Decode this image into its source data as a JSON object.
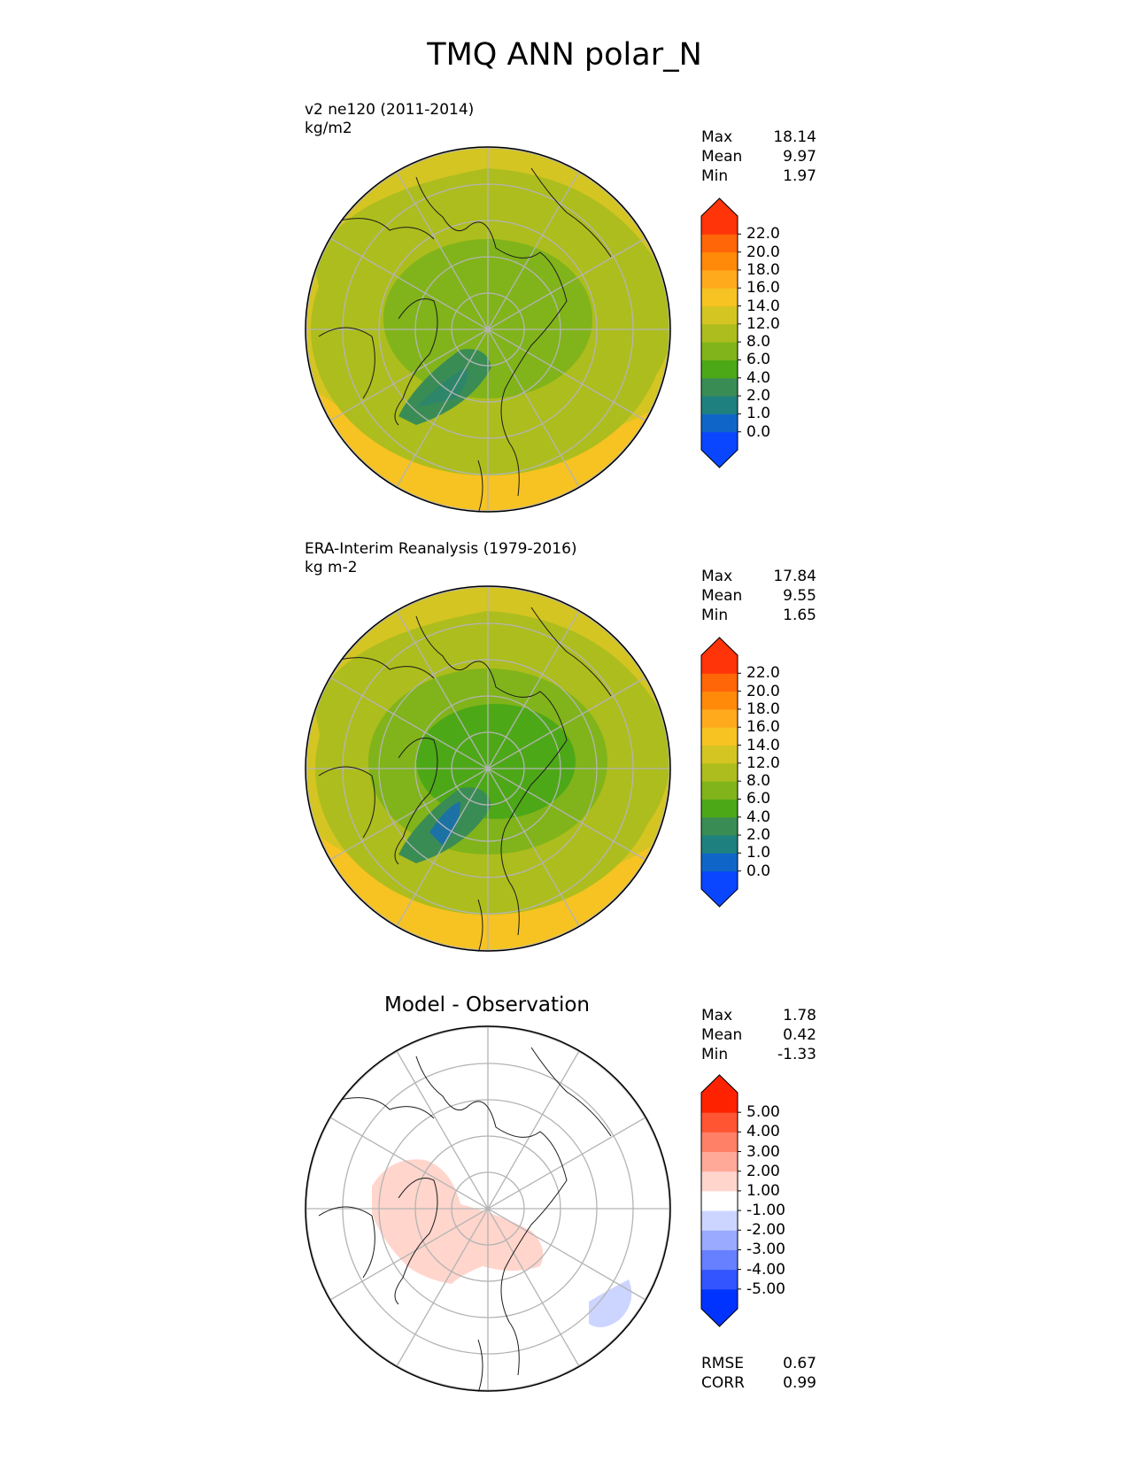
{
  "title": "TMQ ANN polar_N",
  "colors": {
    "fill_levels": [
      "#0a46ff",
      "#1066c8",
      "#1f8080",
      "#3a8c55",
      "#4da817",
      "#80b41a",
      "#adbd1d",
      "#d4c523",
      "#f6c322",
      "#ffaa1d",
      "#ff8a0a",
      "#ff6608",
      "#ff3408"
    ],
    "diff_levels": [
      "#0033ff",
      "#3355ff",
      "#6680ff",
      "#99aaff",
      "#ccd5ff",
      "#ffffff",
      "#ffd5cc",
      "#ffaa99",
      "#ff8066",
      "#ff5533",
      "#ff2200"
    ]
  },
  "chart_data": [
    {
      "type": "heatmap",
      "projection": "north-polar-stereographic",
      "title": "v2 ne120 (2011-2014)",
      "units": "kg/m2",
      "stats": {
        "max_label": "Max",
        "max": "18.14",
        "mean_label": "Mean",
        "mean": "9.97",
        "min_label": "Min",
        "min": "1.97"
      },
      "colorbar_ticks": [
        "0.0",
        "1.0",
        "2.0",
        "4.0",
        "6.0",
        "8.0",
        "12.0",
        "14.0",
        "16.0",
        "18.0",
        "20.0",
        "22.0"
      ]
    },
    {
      "type": "heatmap",
      "projection": "north-polar-stereographic",
      "title": "ERA-Interim Reanalysis (1979-2016)",
      "units": "kg m-2",
      "stats": {
        "max_label": "Max",
        "max": "17.84",
        "mean_label": "Mean",
        "mean": "9.55",
        "min_label": "Min",
        "min": "1.65"
      },
      "colorbar_ticks": [
        "0.0",
        "1.0",
        "2.0",
        "4.0",
        "6.0",
        "8.0",
        "12.0",
        "14.0",
        "16.0",
        "18.0",
        "20.0",
        "22.0"
      ]
    },
    {
      "type": "heatmap",
      "projection": "north-polar-stereographic",
      "title": "Model - Observation",
      "stats": {
        "max_label": "Max",
        "max": "1.78",
        "mean_label": "Mean",
        "mean": "0.42",
        "min_label": "Min",
        "min": "-1.33"
      },
      "metrics": {
        "rmse_label": "RMSE",
        "rmse": "0.67",
        "corr_label": "CORR",
        "corr": "0.99"
      },
      "colorbar_ticks": [
        "-5.00",
        "-4.00",
        "-3.00",
        "-2.00",
        "-1.00",
        "1.00",
        "2.00",
        "3.00",
        "4.00",
        "5.00"
      ]
    }
  ]
}
